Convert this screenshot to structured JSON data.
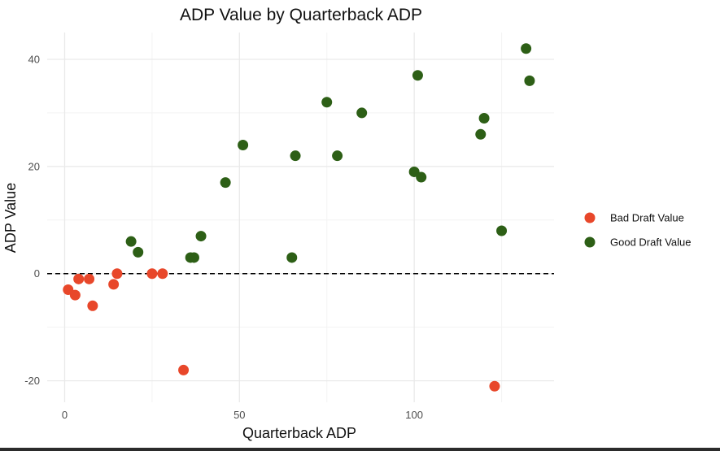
{
  "chart_data": {
    "type": "scatter",
    "title": "ADP Value by Quarterback ADP",
    "xlabel": "Quarterback ADP",
    "ylabel": "ADP Value",
    "xlim": [
      -5,
      140
    ],
    "ylim": [
      -24,
      45
    ],
    "x_ticks": [
      0,
      50,
      100
    ],
    "y_ticks": [
      -20,
      0,
      20,
      40
    ],
    "x_tick_labels": [
      "0",
      "50",
      "100"
    ],
    "y_tick_labels": [
      "-20",
      "0",
      "20",
      "40"
    ],
    "grid": true,
    "reference_line": {
      "y": 0,
      "style": "dashed",
      "color": "#000000"
    },
    "legend_position": "right",
    "series": [
      {
        "name": "Bad Draft Value",
        "color": "#e8472a",
        "points": [
          {
            "x": 1,
            "y": -3
          },
          {
            "x": 3,
            "y": -4
          },
          {
            "x": 4,
            "y": -1
          },
          {
            "x": 7,
            "y": -1
          },
          {
            "x": 8,
            "y": -6
          },
          {
            "x": 14,
            "y": -2
          },
          {
            "x": 15,
            "y": 0
          },
          {
            "x": 25,
            "y": 0
          },
          {
            "x": 28,
            "y": 0
          },
          {
            "x": 34,
            "y": -18
          },
          {
            "x": 123,
            "y": -21
          }
        ]
      },
      {
        "name": "Good Draft Value",
        "color": "#2d5f16",
        "points": [
          {
            "x": 19,
            "y": 6
          },
          {
            "x": 21,
            "y": 4
          },
          {
            "x": 36,
            "y": 3
          },
          {
            "x": 37,
            "y": 3
          },
          {
            "x": 39,
            "y": 7
          },
          {
            "x": 46,
            "y": 17
          },
          {
            "x": 51,
            "y": 24
          },
          {
            "x": 65,
            "y": 3
          },
          {
            "x": 66,
            "y": 22
          },
          {
            "x": 75,
            "y": 32
          },
          {
            "x": 78,
            "y": 22
          },
          {
            "x": 85,
            "y": 30
          },
          {
            "x": 100,
            "y": 19
          },
          {
            "x": 101,
            "y": 37
          },
          {
            "x": 102,
            "y": 18
          },
          {
            "x": 119,
            "y": 26
          },
          {
            "x": 120,
            "y": 29
          },
          {
            "x": 125,
            "y": 8
          },
          {
            "x": 132,
            "y": 42
          },
          {
            "x": 133,
            "y": 36
          }
        ]
      }
    ]
  }
}
